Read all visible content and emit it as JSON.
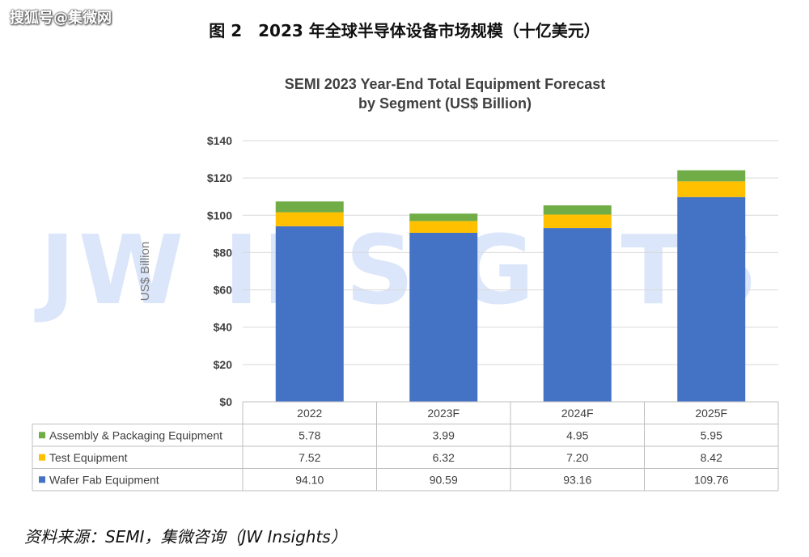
{
  "watermark_top": "搜狐号@集微网",
  "figure_title": "图 2　2023 年全球半导体设备市场规模（十亿美元）",
  "source_note": "资料来源：SEMI，集微咨询（JW Insights）",
  "background_watermark": "JW INSIGHTS",
  "colors": {
    "wafer": "#4472C4",
    "test": "#FFC000",
    "assembly": "#70AD47",
    "grid": "#d9d9d9",
    "table_border": "#bfbfbf",
    "watermark": "#dbe6fa"
  },
  "chart_data": {
    "type": "bar",
    "stacked": true,
    "title": "SEMI 2023 Year-End Total Equipment Forecast",
    "subtitle": "by Segment (US$ Billion)",
    "ylabel": "US$ Billion",
    "ylim": [
      0,
      140
    ],
    "yticks": [
      0,
      20,
      40,
      60,
      80,
      100,
      120,
      140
    ],
    "ytick_labels": [
      "$0",
      "$20",
      "$40",
      "$60",
      "$80",
      "$100",
      "$120",
      "$140"
    ],
    "grid": true,
    "categories": [
      "2022",
      "2023F",
      "2024F",
      "2025F"
    ],
    "series": [
      {
        "name": "Wafer Fab Equipment",
        "color": "#4472C4",
        "values": [
          94.1,
          90.59,
          93.16,
          109.76
        ],
        "labels": [
          "94.10",
          "90.59",
          "93.16",
          "109.76"
        ]
      },
      {
        "name": "Test Equipment",
        "color": "#FFC000",
        "values": [
          7.52,
          6.32,
          7.2,
          8.42
        ],
        "labels": [
          "7.52",
          "6.32",
          "7.20",
          "8.42"
        ]
      },
      {
        "name": "Assembly & Packaging Equipment",
        "color": "#70AD47",
        "values": [
          5.78,
          3.99,
          4.95,
          5.95
        ],
        "labels": [
          "5.78",
          "3.99",
          "4.95",
          "5.95"
        ]
      }
    ],
    "table_row_order": [
      "Assembly & Packaging Equipment",
      "Test Equipment",
      "Wafer Fab Equipment"
    ]
  }
}
